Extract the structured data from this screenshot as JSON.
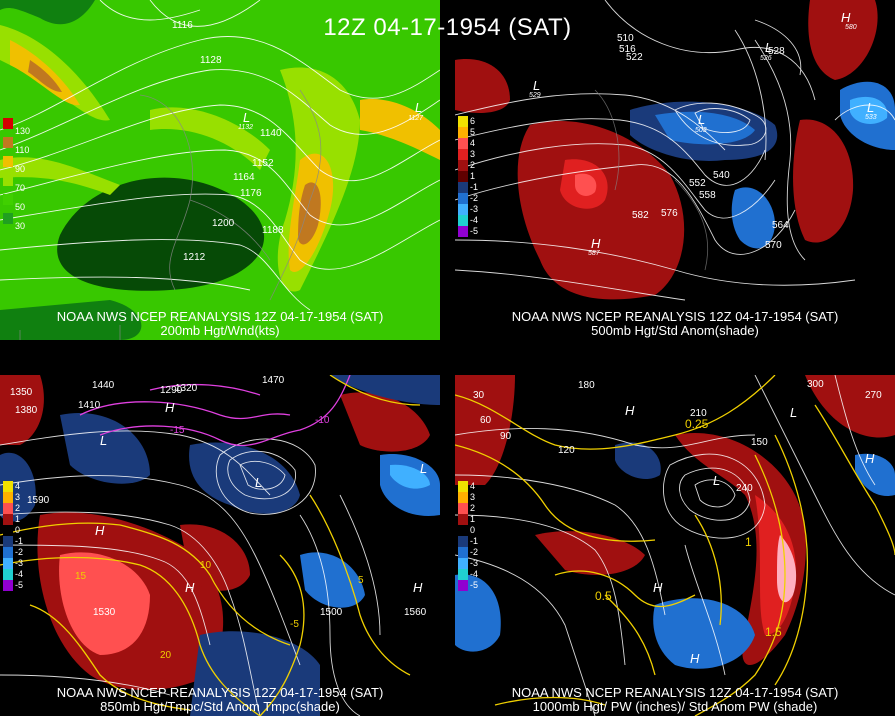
{
  "main_title": "12Z 04-17-1954 (SAT)",
  "panels": [
    {
      "id": "upper-left",
      "caption1": "NOAA NWS NCEP REANALYSIS 12Z 04-17-1954 (SAT)",
      "caption2": "200mb Hgt/Wnd(kts)",
      "legend": [
        "130",
        "110",
        "90",
        "70",
        "50",
        "30"
      ],
      "legend_colors": [
        "#d40000",
        "#c07820",
        "#f0c000",
        "#98e000",
        "#40d000",
        "#20a020"
      ],
      "contour_labels": [
        "1116",
        "1128",
        "1140",
        "1152",
        "1164",
        "1176",
        "1188",
        "1200",
        "1212"
      ],
      "lows": [
        "L",
        "L"
      ],
      "low_values": [
        "1132",
        "1127"
      ]
    },
    {
      "id": "upper-right",
      "caption1": "NOAA NWS NCEP REANALYSIS 12Z 04-17-1954 (SAT)",
      "caption2": "500mb Hgt/Std Anom(shade)",
      "legend": [
        "6",
        "5",
        "4",
        "3",
        "2",
        "1",
        "-1",
        "-2",
        "-3",
        "-4",
        "-5"
      ],
      "legend_colors": [
        "#f0e000",
        "#ffb000",
        "#ff5050",
        "#e02020",
        "#a01010",
        "#600000",
        "#1a3a7a",
        "#2070d0",
        "#40b0ff",
        "#20d0d0",
        "#9000d0"
      ],
      "contour_labels": [
        "510",
        "516",
        "522",
        "528",
        "540",
        "552",
        "558",
        "564",
        "570",
        "576",
        "582"
      ],
      "highs": [
        "H",
        "H"
      ],
      "high_values": [
        "587",
        "580"
      ],
      "lows": [
        "L",
        "L",
        "L",
        "L"
      ],
      "low_values": [
        "529",
        "503",
        "526",
        "533"
      ]
    },
    {
      "id": "lower-left",
      "caption1": "NOAA NWS NCEP REANALYSIS 12Z 04-17-1954 (SAT)",
      "caption2": "850mb Hgt/Tmpc/Std Anom Tmpc(shade)",
      "legend": [
        "4",
        "3",
        "2",
        "1",
        "0",
        "-1",
        "-2",
        "-3",
        "-4",
        "-5"
      ],
      "legend_colors": [
        "#f0e000",
        "#ffb000",
        "#ff5050",
        "#a01010",
        "#000000",
        "#1a3a7a",
        "#2070d0",
        "#40b0ff",
        "#20d0d0",
        "#9000d0"
      ],
      "contour_labels": [
        "1290",
        "1320",
        "1350",
        "1380",
        "1410",
        "1440",
        "1470",
        "1500",
        "1530",
        "1560",
        "1590"
      ],
      "temp_labels": [
        "-15",
        "-10",
        "-5",
        "5",
        "10",
        "15",
        "20"
      ],
      "highs": [
        "H",
        "H",
        "H",
        "H"
      ],
      "lows": [
        "L",
        "L",
        "L"
      ]
    },
    {
      "id": "lower-right",
      "caption1": "NOAA NWS NCEP REANALYSIS 12Z 04-17-1954 (SAT)",
      "caption2": "1000mb Hgt/ PW (inches)/ Std Anom PW (shade)",
      "legend": [
        "4",
        "3",
        "2",
        "1",
        "0",
        "-1",
        "-2",
        "-3",
        "-4",
        "-5"
      ],
      "legend_colors": [
        "#f0e000",
        "#ffb000",
        "#ff5050",
        "#a01010",
        "#000000",
        "#1a3a7a",
        "#2070d0",
        "#40b0ff",
        "#20d0d0",
        "#9000d0"
      ],
      "contour_labels": [
        "30",
        "60",
        "90",
        "120",
        "150",
        "180",
        "210",
        "240",
        "270",
        "300"
      ],
      "pw_labels": [
        "0.25",
        "0.5",
        "1",
        "1.5"
      ],
      "highs": [
        "H",
        "H",
        "H",
        "H"
      ],
      "lows": [
        "L",
        "L"
      ]
    }
  ]
}
